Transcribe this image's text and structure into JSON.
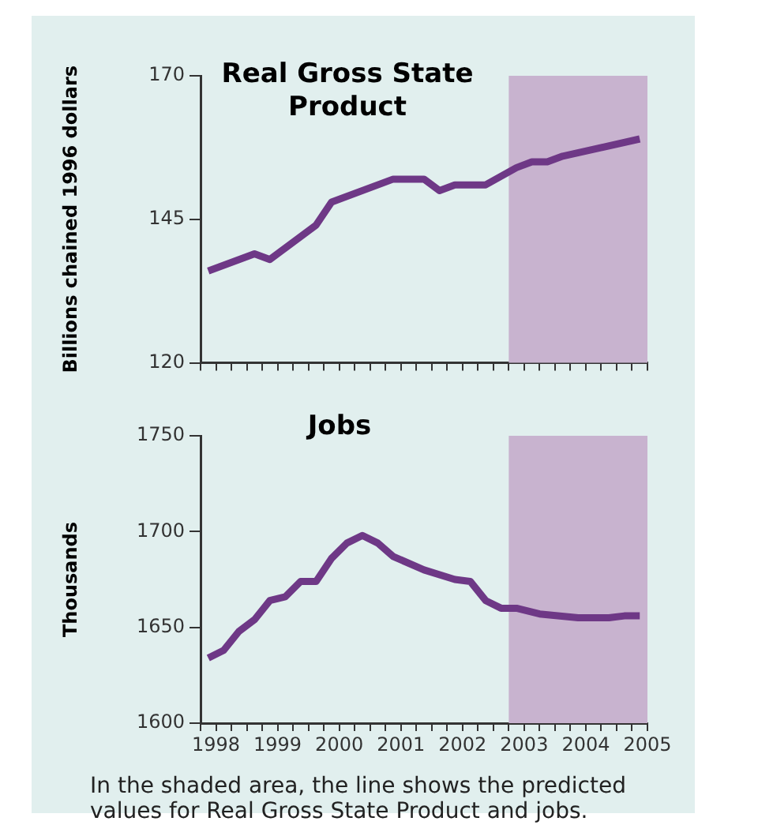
{
  "chart_data": [
    {
      "type": "line",
      "title": "Real Gross State Product",
      "ylabel": "Billions chained 1996 dollars",
      "color": "#6e3886",
      "grid": false,
      "legend": false,
      "marker": "none",
      "line_style": "solid",
      "tick_labels": "y",
      "x": [
        1997.875,
        1998.625,
        1998.875,
        1999.625,
        1999.875,
        2000.875,
        2001.375,
        2001.625,
        2001.875,
        2002.375,
        2002.875,
        2003.125,
        2003.375,
        2003.625,
        2004.875
      ],
      "values": [
        136,
        139,
        138,
        144,
        148,
        152,
        152,
        150,
        151,
        151,
        154,
        155,
        155,
        156,
        159
      ],
      "xlim": [
        1997.75,
        2005
      ],
      "ylim": [
        120,
        170
      ],
      "yticks": [
        120,
        145,
        170
      ],
      "xticks": [
        {
          "value": 1997.75,
          "label": null
        },
        1998,
        {
          "value": 1998.25,
          "label": null
        },
        {
          "value": 1998.5,
          "label": null
        },
        {
          "value": 1998.75,
          "label": null
        },
        1999,
        {
          "value": 1999.25,
          "label": null
        },
        {
          "value": 1999.5,
          "label": null
        },
        {
          "value": 1999.75,
          "label": null
        },
        2000,
        {
          "value": 2000.25,
          "label": null
        },
        {
          "value": 2000.5,
          "label": null
        },
        {
          "value": 2000.75,
          "label": null
        },
        2001,
        {
          "value": 2001.25,
          "label": null
        },
        {
          "value": 2001.5,
          "label": null
        },
        {
          "value": 2001.75,
          "label": null
        },
        2002,
        {
          "value": 2002.25,
          "label": null
        },
        {
          "value": 2002.5,
          "label": null
        },
        {
          "value": 2002.75,
          "label": null
        },
        2003,
        {
          "value": 2003.25,
          "label": null
        },
        {
          "value": 2003.5,
          "label": null
        },
        {
          "value": 2003.75,
          "label": null
        },
        2004,
        {
          "value": 2004.25,
          "label": null
        },
        {
          "value": 2004.5,
          "label": null
        },
        {
          "value": 2004.75,
          "label": null
        },
        2005
      ],
      "bands": [
        {
          "axis": "x",
          "from": 2002.75,
          "to": 2005,
          "color": "#c8b3cf"
        }
      ]
    },
    {
      "type": "line",
      "title": "Jobs",
      "ylabel": "Thousands",
      "color": "#6e3886",
      "grid": false,
      "legend": false,
      "marker": "none",
      "line_style": "solid",
      "x": [
        1997.875,
        1998.125,
        1998.375,
        1998.625,
        1998.875,
        1999.125,
        1999.375,
        1999.625,
        1999.875,
        2000.125,
        2000.375,
        2000.625,
        2000.875,
        2001.375,
        2001.875,
        2002.125,
        2002.375,
        2002.625,
        2002.875,
        2003.25,
        2003.875,
        2004.375,
        2004.625,
        2004.875
      ],
      "values": [
        1634,
        1638,
        1648,
        1654,
        1664,
        1666,
        1674,
        1674,
        1686,
        1694,
        1698,
        1694,
        1687,
        1680,
        1675,
        1674,
        1664,
        1660,
        1660,
        1657,
        1655,
        1655,
        1656,
        1656
      ],
      "xlim": [
        1997.75,
        2005
      ],
      "ylim": [
        1600,
        1750
      ],
      "yticks": [
        1600,
        1650,
        1700,
        1750
      ],
      "xticks": [
        {
          "value": 1997.75,
          "label": null
        },
        1998,
        {
          "value": 1998.25,
          "label": null
        },
        {
          "value": 1998.5,
          "label": null
        },
        {
          "value": 1998.75,
          "label": null
        },
        1999,
        {
          "value": 1999.25,
          "label": null
        },
        {
          "value": 1999.5,
          "label": null
        },
        {
          "value": 1999.75,
          "label": null
        },
        2000,
        {
          "value": 2000.25,
          "label": null
        },
        {
          "value": 2000.5,
          "label": null
        },
        {
          "value": 2000.75,
          "label": null
        },
        2001,
        {
          "value": 2001.25,
          "label": null
        },
        {
          "value": 2001.5,
          "label": null
        },
        {
          "value": 2001.75,
          "label": null
        },
        2002,
        {
          "value": 2002.25,
          "label": null
        },
        {
          "value": 2002.5,
          "label": null
        },
        {
          "value": 2002.75,
          "label": null
        },
        2003,
        {
          "value": 2003.25,
          "label": null
        },
        {
          "value": 2003.5,
          "label": null
        },
        {
          "value": 2003.75,
          "label": null
        },
        2004,
        {
          "value": 2004.25,
          "label": null
        },
        {
          "value": 2004.5,
          "label": null
        },
        {
          "value": 2004.75,
          "label": null
        },
        2005
      ],
      "bands": [
        {
          "axis": "x",
          "from": 2002.75,
          "to": 2005,
          "color": "#c8b3cf"
        }
      ],
      "annotations": [
        "In the shaded area, the line shows the predicted values for Real Gross State Product and jobs."
      ]
    }
  ]
}
